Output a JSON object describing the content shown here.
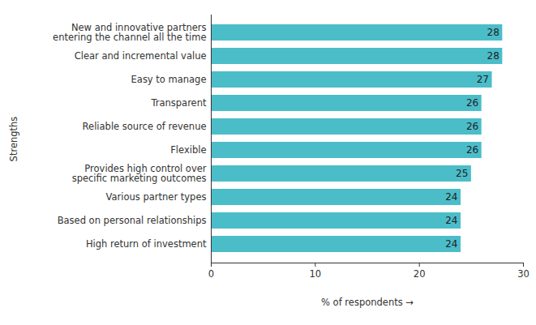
{
  "chart_data": {
    "type": "bar",
    "orientation": "horizontal",
    "categories": [
      "New and innovative partners\nentering the channel all the time",
      "Clear and incremental value",
      "Easy to manage",
      "Transparent",
      "Reliable source of revenue",
      "Flexible",
      "Provides high control over\nspecific marketing outcomes",
      "Various partner types",
      "Based on personal relationships",
      "High return of investment"
    ],
    "values": [
      28,
      28,
      27,
      26,
      26,
      26,
      25,
      24,
      24,
      24
    ],
    "color": "#4bbdc9",
    "xlabel": "% of respondents",
    "ylabel": "Strengths",
    "xlim": [
      0,
      30
    ],
    "xticks": [
      0,
      10,
      20,
      30
    ],
    "grid": false,
    "data_labels": true
  }
}
